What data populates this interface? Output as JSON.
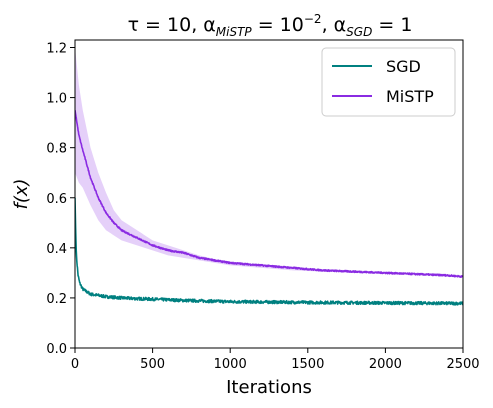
{
  "chart_data": {
    "type": "line",
    "title": {
      "prefix": "τ = 10, α",
      "sub1": "MiSTP",
      "mid": " = 10",
      "sup": "−2",
      "mid2": ", α",
      "sub2": "SGD",
      "suffix": " = 1"
    },
    "xlabel": "Iterations",
    "ylabel": "f(x)",
    "xlim": [
      0,
      2500
    ],
    "ylim": [
      0,
      1.23
    ],
    "xticks": [
      0,
      500,
      1000,
      1500,
      2000,
      2500
    ],
    "yticks": [
      0.0,
      0.2,
      0.4,
      0.6,
      0.8,
      1.0,
      1.2
    ],
    "xtick_labels": [
      "0",
      "500",
      "1000",
      "1500",
      "2000",
      "2500"
    ],
    "ytick_labels": [
      "0.0",
      "0.2",
      "0.4",
      "0.6",
      "0.8",
      "1.0",
      "1.2"
    ],
    "legend_position": "top-right",
    "grid": false,
    "series": [
      {
        "name": "SGD",
        "color": "#008080",
        "x": [
          0,
          5,
          10,
          20,
          30,
          50,
          75,
          100,
          150,
          200,
          300,
          400,
          500,
          700,
          1000,
          1500,
          2000,
          2500
        ],
        "y": [
          0.6,
          0.45,
          0.36,
          0.29,
          0.26,
          0.235,
          0.225,
          0.215,
          0.21,
          0.205,
          0.2,
          0.197,
          0.195,
          0.19,
          0.185,
          0.182,
          0.18,
          0.178
        ],
        "noise": 0.006
      },
      {
        "name": "MiSTP",
        "color": "#8a2be2",
        "x": [
          0,
          25,
          50,
          100,
          150,
          200,
          250,
          300,
          400,
          500,
          600,
          700,
          800,
          900,
          1000,
          1200,
          1400,
          1600,
          1800,
          2000,
          2200,
          2400,
          2500
        ],
        "y": [
          0.95,
          0.85,
          0.79,
          0.68,
          0.6,
          0.54,
          0.5,
          0.47,
          0.44,
          0.41,
          0.39,
          0.38,
          0.36,
          0.35,
          0.34,
          0.33,
          0.32,
          0.31,
          0.305,
          0.3,
          0.295,
          0.29,
          0.285
        ],
        "band_upper": [
          1.2,
          1.05,
          0.95,
          0.8,
          0.7,
          0.62,
          0.55,
          0.51,
          0.47,
          0.43,
          0.41,
          0.39,
          0.37,
          0.355,
          0.345,
          0.335,
          0.325,
          0.315,
          0.31,
          0.305,
          0.3,
          0.295,
          0.29
        ],
        "band_lower": [
          0.7,
          0.66,
          0.64,
          0.57,
          0.51,
          0.47,
          0.45,
          0.43,
          0.41,
          0.39,
          0.37,
          0.36,
          0.35,
          0.34,
          0.33,
          0.32,
          0.31,
          0.305,
          0.3,
          0.295,
          0.29,
          0.285,
          0.28
        ],
        "band_color": "#8a2be2",
        "noise": 0.003
      }
    ]
  }
}
